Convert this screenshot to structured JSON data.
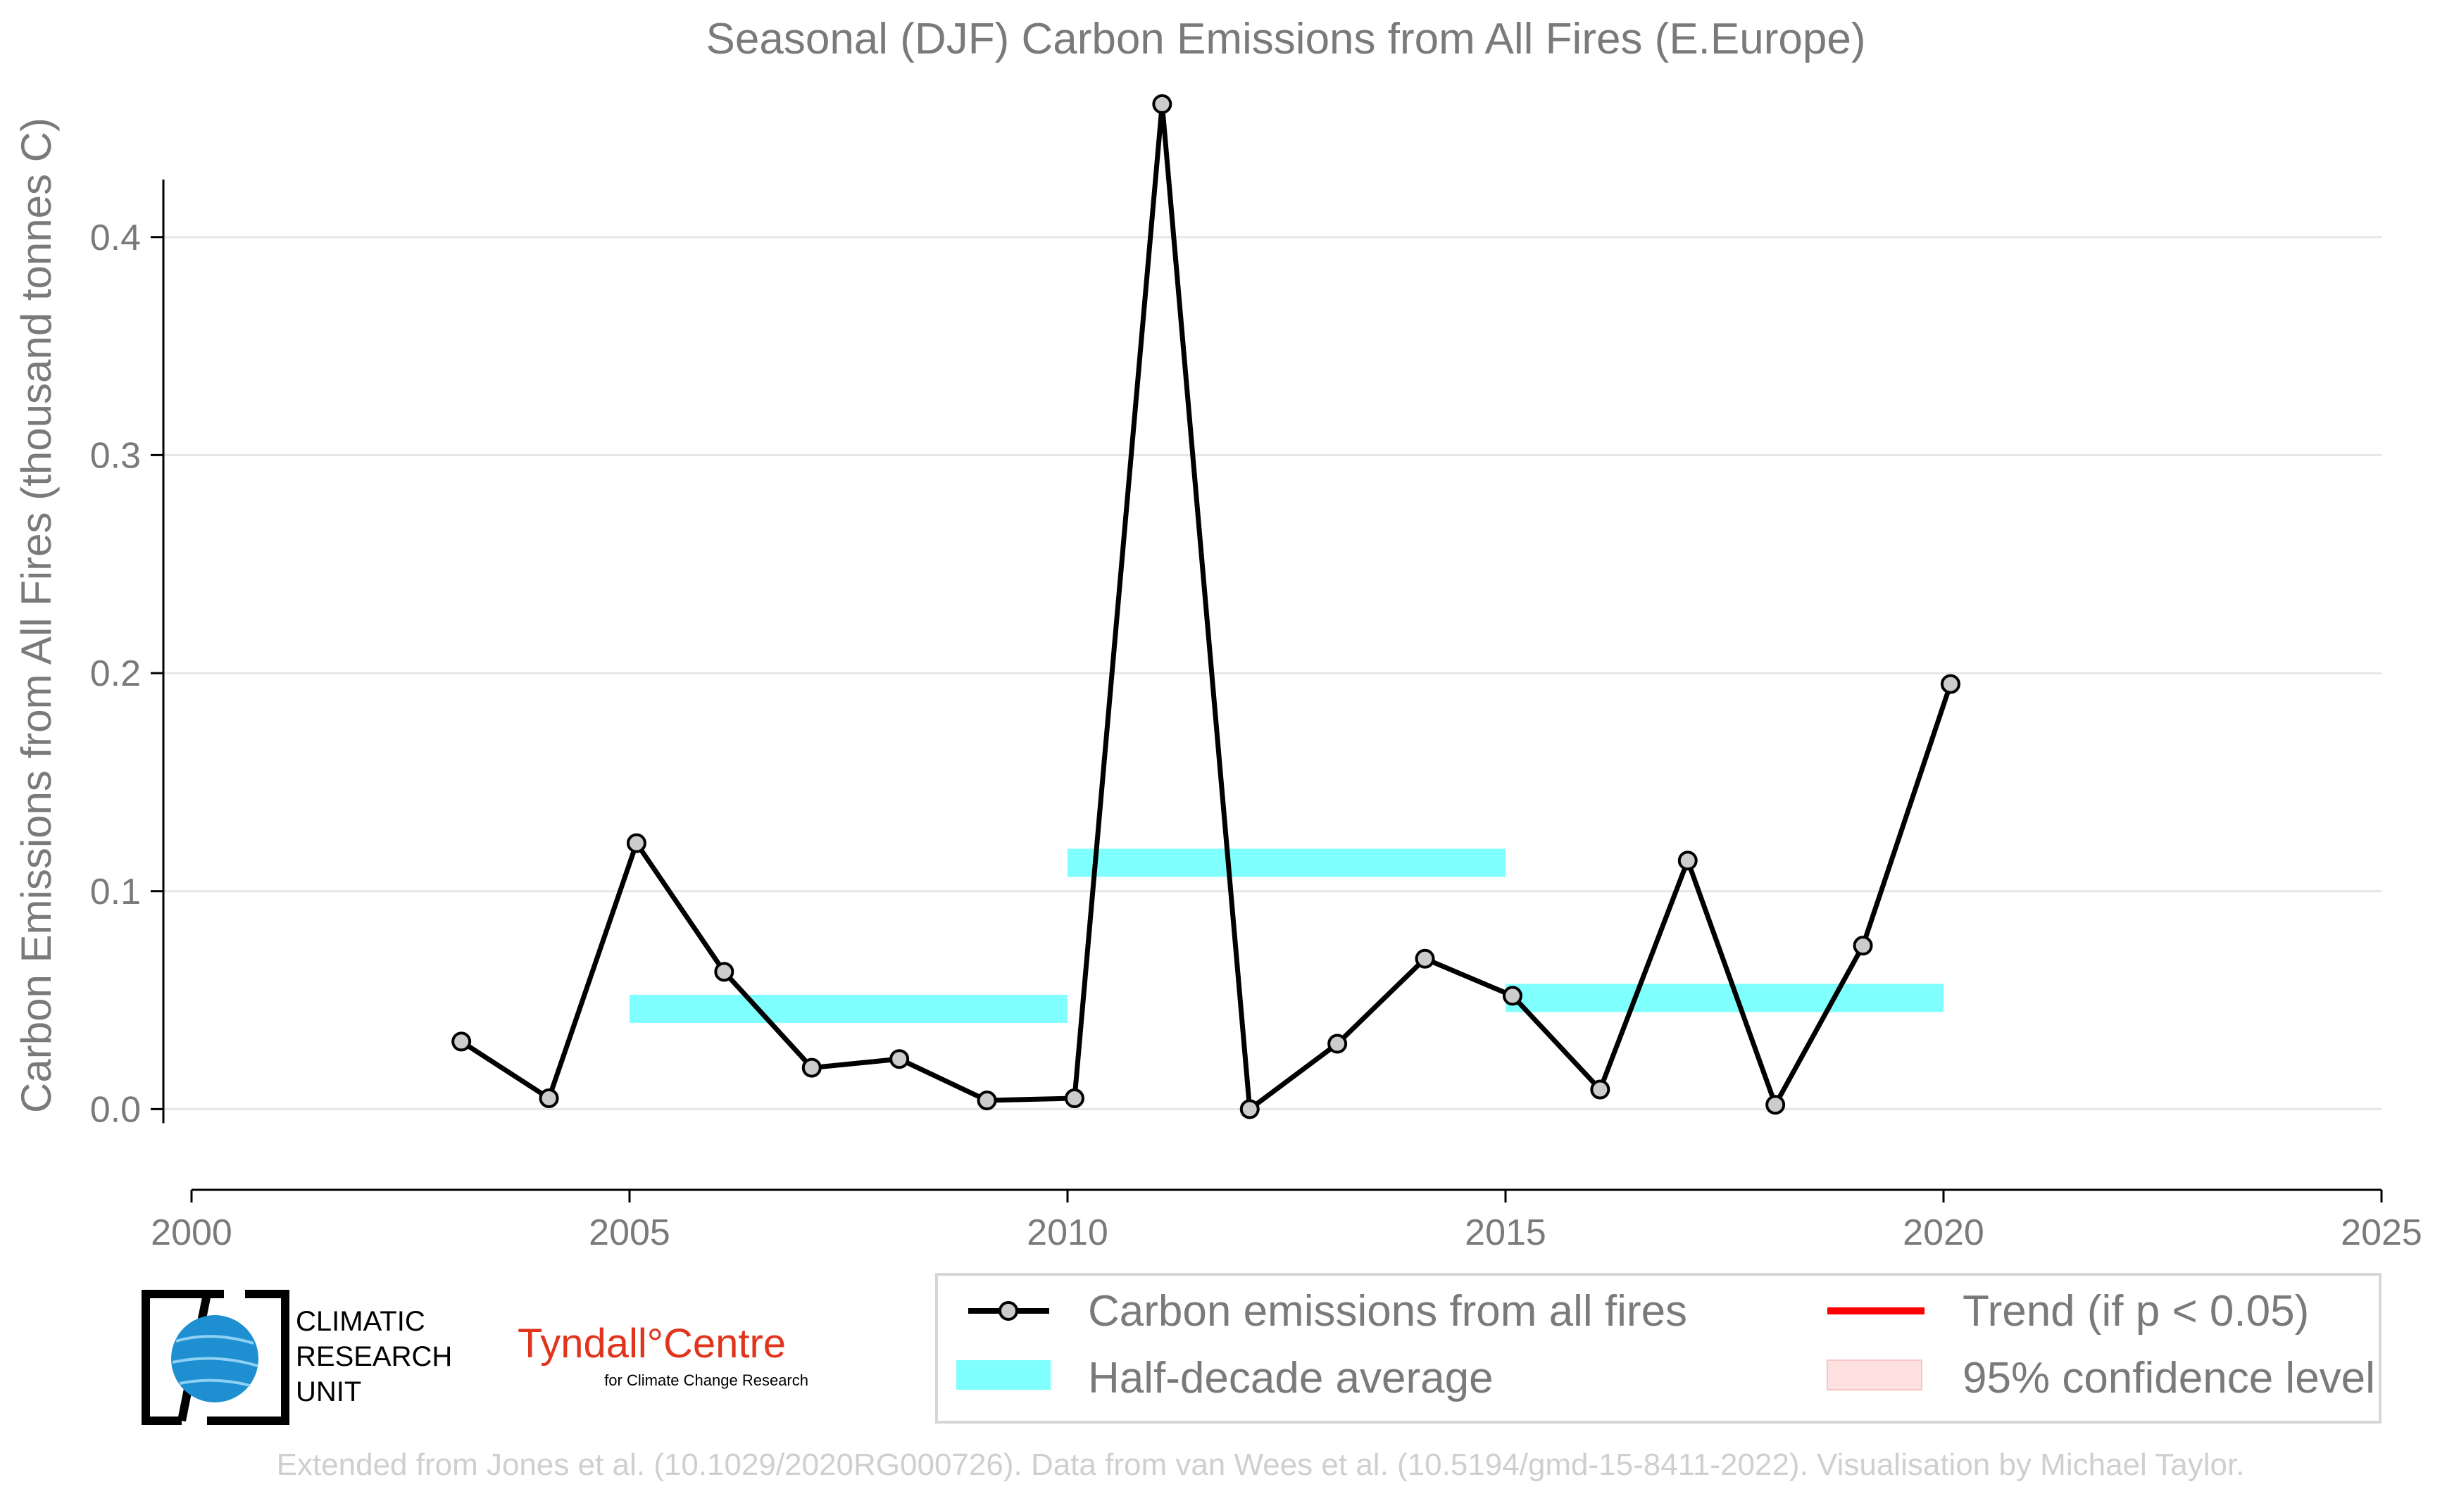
{
  "chart_data": {
    "type": "line",
    "title": "Seasonal (DJF) Carbon Emissions from All Fires (E.Europe)",
    "xlabel": "",
    "ylabel": "Carbon Emissions from All Fires (thousand tonnes C)",
    "xlim": [
      2000,
      2025
    ],
    "ylim": [
      -0.037,
      0.47
    ],
    "xticks": [
      2000,
      2005,
      2010,
      2015,
      2020,
      2025
    ],
    "yticks": [
      0.0,
      0.1,
      0.2,
      0.3,
      0.4
    ],
    "ytick_labels": [
      "0.0",
      "0.1",
      "0.2",
      "0.3",
      "0.4"
    ],
    "grid": "horizontal",
    "series": [
      {
        "name": "Carbon emissions from all fires",
        "color": "#000000",
        "x": [
          2003.08,
          2004.08,
          2005.08,
          2006.08,
          2007.08,
          2008.08,
          2009.08,
          2010.08,
          2011.08,
          2012.08,
          2013.08,
          2014.08,
          2015.08,
          2016.08,
          2017.08,
          2018.08,
          2019.08,
          2020.08
        ],
        "y": [
          0.031,
          0.005,
          0.122,
          0.063,
          0.019,
          0.023,
          0.004,
          0.005,
          0.461,
          0.0,
          0.03,
          0.069,
          0.052,
          0.009,
          0.114,
          0.002,
          0.075,
          0.195
        ]
      }
    ],
    "half_decade_average": {
      "name": "Half-decade average",
      "color": "#80ffff",
      "segments": [
        {
          "x0": 2005,
          "x1": 2010,
          "y": 0.046
        },
        {
          "x0": 2010,
          "x1": 2015,
          "y": 0.113
        },
        {
          "x0": 2015,
          "x1": 2020,
          "y": 0.051
        }
      ]
    },
    "legend": {
      "placement": "bottom-right",
      "entries": [
        {
          "label": "Carbon emissions from all fires",
          "kind": "line-marker",
          "color": "#000000"
        },
        {
          "label": "Half-decade average",
          "kind": "band",
          "color": "#80ffff"
        },
        {
          "label": "Trend (if p < 0.05)",
          "kind": "line",
          "color": "#ff0000"
        },
        {
          "label": "95% confidence level",
          "kind": "patch",
          "color": "#ffe0e0"
        }
      ]
    }
  },
  "logos": {
    "cru": {
      "line1": "CLIMATIC",
      "line2": "RESEARCH",
      "line3": "UNIT"
    },
    "tyndall": {
      "main": "Tyndall°Centre",
      "sub": "for Climate Change Research"
    }
  },
  "footer": "Extended from Jones et al. (10.1029/2020RG000726). Data from van Wees et al. (10.5194/gmd-15-8411-2022). Visualisation by Michael Taylor."
}
